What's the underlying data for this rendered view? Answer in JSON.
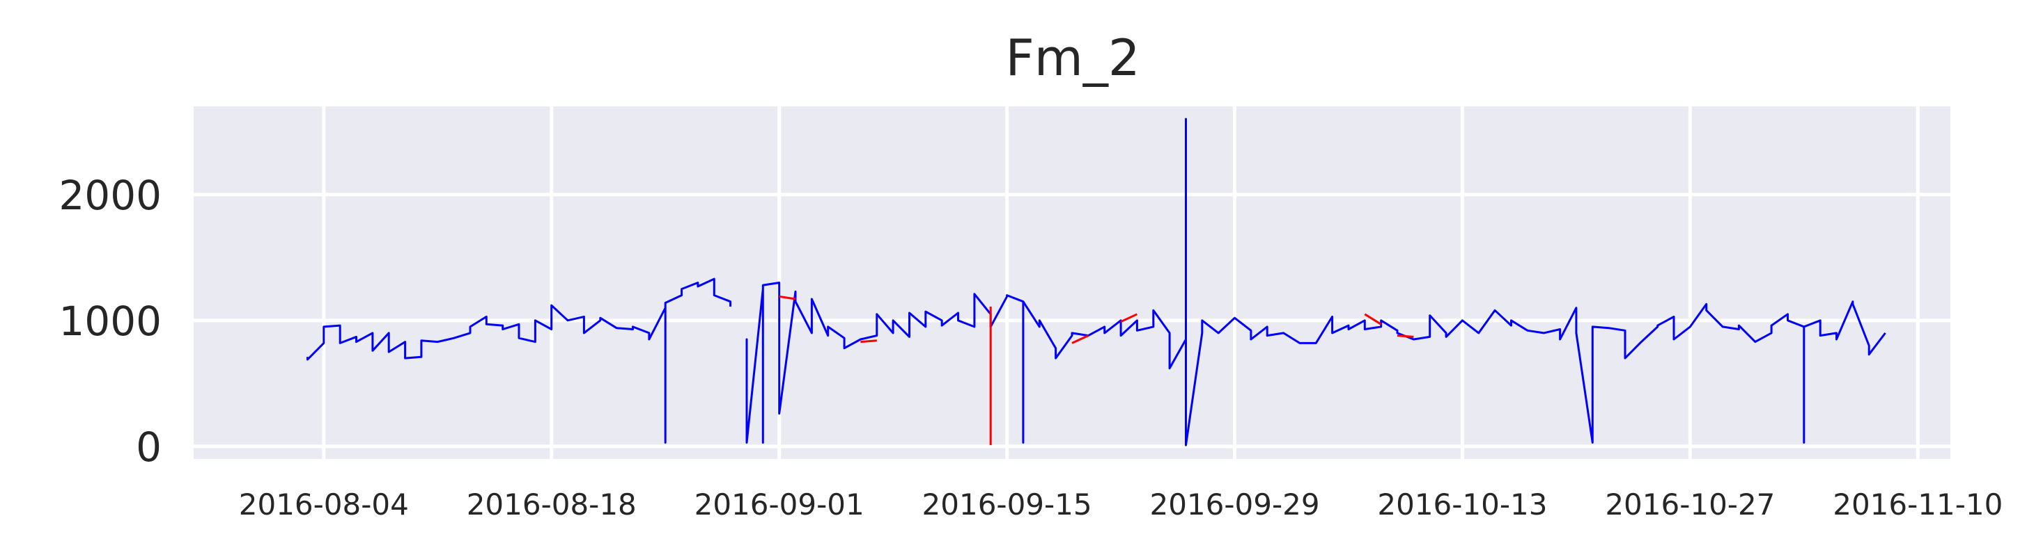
{
  "chart_data": {
    "type": "line",
    "title": "Fm_2",
    "xlabel": "",
    "ylabel": "",
    "grid": true,
    "legend": "none",
    "xlim": [
      "2016-07-27",
      "2016-11-12"
    ],
    "ylim": [
      -100,
      2700
    ],
    "x_ticks": [
      "2016-08-04",
      "2016-08-18",
      "2016-09-01",
      "2016-09-15",
      "2016-09-29",
      "2016-10-13",
      "2016-10-27",
      "2016-11-10"
    ],
    "y_ticks": [
      0,
      1000,
      2000
    ],
    "colors": {
      "background": "#eaeaf2",
      "primary": "#0000ff",
      "secondary": "#ff0000"
    },
    "series": [
      {
        "color": "#0000ff",
        "points": [
          [
            "2016-08-03",
            710
          ],
          [
            "2016-08-03",
            690
          ],
          [
            "2016-08-04",
            820
          ],
          [
            "2016-08-04",
            950
          ],
          [
            "2016-08-05",
            960
          ],
          [
            "2016-08-05",
            820
          ],
          [
            "2016-08-06",
            870
          ],
          [
            "2016-08-06",
            830
          ],
          [
            "2016-08-07",
            900
          ],
          [
            "2016-08-07",
            760
          ],
          [
            "2016-08-08",
            900
          ],
          [
            "2016-08-08",
            750
          ],
          [
            "2016-08-09",
            830
          ],
          [
            "2016-08-09",
            700
          ],
          [
            "2016-08-10",
            710
          ],
          [
            "2016-08-10",
            840
          ],
          [
            "2016-08-11",
            830
          ],
          [
            "2016-08-12",
            860
          ],
          [
            "2016-08-13",
            900
          ],
          [
            "2016-08-13",
            950
          ],
          [
            "2016-08-14",
            1030
          ],
          [
            "2016-08-14",
            970
          ],
          [
            "2016-08-15",
            960
          ],
          [
            "2016-08-15",
            930
          ],
          [
            "2016-08-16",
            970
          ],
          [
            "2016-08-16",
            860
          ],
          [
            "2016-08-17",
            830
          ],
          [
            "2016-08-17",
            1000
          ],
          [
            "2016-08-18",
            930
          ],
          [
            "2016-08-18",
            1120
          ],
          [
            "2016-08-19",
            1000
          ],
          [
            "2016-08-20",
            1030
          ],
          [
            "2016-08-20",
            900
          ],
          [
            "2016-08-21",
            1000
          ],
          [
            "2016-08-21",
            1020
          ],
          [
            "2016-08-22",
            940
          ],
          [
            "2016-08-23",
            930
          ],
          [
            "2016-08-23",
            950
          ],
          [
            "2016-08-24",
            900
          ],
          [
            "2016-08-24",
            850
          ],
          [
            "2016-08-25",
            1100
          ],
          [
            "2016-08-25",
            30
          ],
          [
            "2016-08-25",
            1140
          ],
          [
            "2016-08-26",
            1200
          ],
          [
            "2016-08-26",
            1250
          ],
          [
            "2016-08-27",
            1300
          ],
          [
            "2016-08-27",
            1270
          ],
          [
            "2016-08-28",
            1330
          ],
          [
            "2016-08-28",
            1200
          ],
          [
            "2016-08-29",
            1150
          ],
          [
            "2016-08-29",
            1110
          ],
          [
            null,
            null
          ],
          [
            "2016-08-30",
            760
          ],
          [
            "2016-08-30",
            850
          ],
          [
            "2016-08-30",
            30
          ],
          [
            "2016-08-31",
            1250
          ],
          [
            "2016-08-31",
            1220
          ],
          [
            "2016-08-31",
            30
          ],
          [
            "2016-08-31",
            1280
          ],
          [
            "2016-09-01",
            1300
          ],
          [
            "2016-09-01",
            1270
          ],
          [
            "2016-09-01",
            260
          ],
          [
            "2016-09-02",
            1230
          ],
          [
            "2016-09-02",
            1150
          ],
          [
            "2016-09-03",
            900
          ],
          [
            "2016-09-03",
            1170
          ],
          [
            "2016-09-04",
            880
          ],
          [
            "2016-09-04",
            950
          ],
          [
            "2016-09-05",
            860
          ],
          [
            "2016-09-05",
            780
          ],
          [
            "2016-09-06",
            850
          ],
          [
            "2016-09-07",
            880
          ],
          [
            "2016-09-07",
            1050
          ],
          [
            "2016-09-08",
            900
          ],
          [
            "2016-09-08",
            1000
          ],
          [
            "2016-09-09",
            870
          ],
          [
            "2016-09-09",
            1060
          ],
          [
            "2016-09-10",
            950
          ],
          [
            "2016-09-10",
            1070
          ],
          [
            "2016-09-11",
            1000
          ],
          [
            "2016-09-11",
            960
          ],
          [
            "2016-09-12",
            1060
          ],
          [
            "2016-09-12",
            1000
          ],
          [
            "2016-09-13",
            950
          ],
          [
            "2016-09-13",
            1210
          ],
          [
            "2016-09-14",
            1050
          ],
          [
            "2016-09-14",
            950
          ],
          [
            "2016-09-15",
            1190
          ],
          [
            "2016-09-15",
            1200
          ],
          [
            "2016-09-16",
            1150
          ],
          [
            "2016-09-16",
            30
          ],
          [
            "2016-09-16",
            1150
          ],
          [
            "2016-09-17",
            950
          ],
          [
            "2016-09-17",
            1000
          ],
          [
            "2016-09-18",
            780
          ],
          [
            "2016-09-18",
            700
          ],
          [
            "2016-09-19",
            880
          ],
          [
            "2016-09-19",
            900
          ],
          [
            "2016-09-20",
            880
          ],
          [
            "2016-09-21",
            950
          ],
          [
            "2016-09-21",
            900
          ],
          [
            "2016-09-22",
            1000
          ],
          [
            "2016-09-22",
            880
          ],
          [
            "2016-09-23",
            1000
          ],
          [
            "2016-09-23",
            920
          ],
          [
            "2016-09-24",
            950
          ],
          [
            "2016-09-24",
            1080
          ],
          [
            "2016-09-25",
            900
          ],
          [
            "2016-09-25",
            700
          ],
          [
            "2016-09-25",
            620
          ],
          [
            "2016-09-26",
            850
          ],
          [
            "2016-09-26",
            950
          ],
          [
            "2016-09-26",
            2600
          ],
          [
            "2016-09-26",
            10
          ],
          [
            "2016-09-27",
            900
          ],
          [
            "2016-09-27",
            1000
          ],
          [
            "2016-09-28",
            900
          ],
          [
            "2016-09-29",
            1020
          ],
          [
            "2016-09-30",
            920
          ],
          [
            "2016-09-30",
            850
          ],
          [
            "2016-10-01",
            950
          ],
          [
            "2016-10-01",
            880
          ],
          [
            "2016-10-02",
            900
          ],
          [
            "2016-10-03",
            820
          ],
          [
            "2016-10-04",
            820
          ],
          [
            "2016-10-05",
            1030
          ],
          [
            "2016-10-05",
            900
          ],
          [
            "2016-10-06",
            960
          ],
          [
            "2016-10-06",
            930
          ],
          [
            "2016-10-07",
            1000
          ],
          [
            "2016-10-07",
            930
          ],
          [
            "2016-10-08",
            950
          ],
          [
            "2016-10-08",
            1000
          ],
          [
            "2016-10-09",
            920
          ],
          [
            "2016-10-09",
            900
          ],
          [
            "2016-10-10",
            850
          ],
          [
            "2016-10-11",
            870
          ],
          [
            "2016-10-11",
            1040
          ],
          [
            "2016-10-12",
            900
          ],
          [
            "2016-10-12",
            870
          ],
          [
            "2016-10-13",
            1000
          ],
          [
            "2016-10-14",
            900
          ],
          [
            "2016-10-15",
            1080
          ],
          [
            "2016-10-16",
            960
          ],
          [
            "2016-10-16",
            1000
          ],
          [
            "2016-10-17",
            920
          ],
          [
            "2016-10-18",
            900
          ],
          [
            "2016-10-19",
            930
          ],
          [
            "2016-10-19",
            850
          ],
          [
            "2016-10-20",
            1100
          ],
          [
            "2016-10-20",
            900
          ],
          [
            "2016-10-21",
            30
          ],
          [
            "2016-10-21",
            950
          ],
          [
            "2016-10-22",
            940
          ],
          [
            "2016-10-23",
            920
          ],
          [
            "2016-10-23",
            700
          ],
          [
            "2016-10-24",
            830
          ],
          [
            "2016-10-25",
            950
          ],
          [
            "2016-10-25",
            960
          ],
          [
            "2016-10-26",
            1030
          ],
          [
            "2016-10-26",
            850
          ],
          [
            "2016-10-27",
            950
          ],
          [
            "2016-10-28",
            1130
          ],
          [
            "2016-10-28",
            1080
          ],
          [
            "2016-10-29",
            950
          ],
          [
            "2016-10-30",
            930
          ],
          [
            "2016-10-30",
            960
          ],
          [
            "2016-10-31",
            830
          ],
          [
            "2016-11-01",
            900
          ],
          [
            "2016-11-01",
            960
          ],
          [
            "2016-11-02",
            1050
          ],
          [
            "2016-11-02",
            1000
          ],
          [
            "2016-11-03",
            950
          ],
          [
            "2016-11-03",
            30
          ],
          [
            "2016-11-03",
            950
          ],
          [
            "2016-11-04",
            1000
          ],
          [
            "2016-11-04",
            880
          ],
          [
            "2016-11-05",
            900
          ],
          [
            "2016-11-05",
            850
          ],
          [
            "2016-11-06",
            1150
          ],
          [
            "2016-11-06",
            1130
          ],
          [
            "2016-11-07",
            800
          ],
          [
            "2016-11-07",
            730
          ],
          [
            "2016-11-08",
            900
          ]
        ]
      },
      {
        "color": "#ff0000",
        "points": [
          [
            "2016-09-01",
            1190
          ],
          [
            "2016-09-02",
            1170
          ],
          [
            null,
            null
          ],
          [
            "2016-09-06",
            830
          ],
          [
            "2016-09-07",
            840
          ],
          [
            null,
            null
          ],
          [
            "2016-09-14",
            1110
          ],
          [
            "2016-09-14",
            10
          ],
          [
            null,
            null
          ],
          [
            "2016-09-19",
            820
          ],
          [
            "2016-09-20",
            880
          ],
          [
            null,
            null
          ],
          [
            "2016-09-22",
            990
          ],
          [
            "2016-09-23",
            1050
          ],
          [
            null,
            null
          ],
          [
            "2016-10-07",
            1050
          ],
          [
            "2016-10-08",
            970
          ],
          [
            null,
            null
          ],
          [
            "2016-10-09",
            880
          ],
          [
            "2016-10-10",
            870
          ]
        ]
      }
    ]
  }
}
